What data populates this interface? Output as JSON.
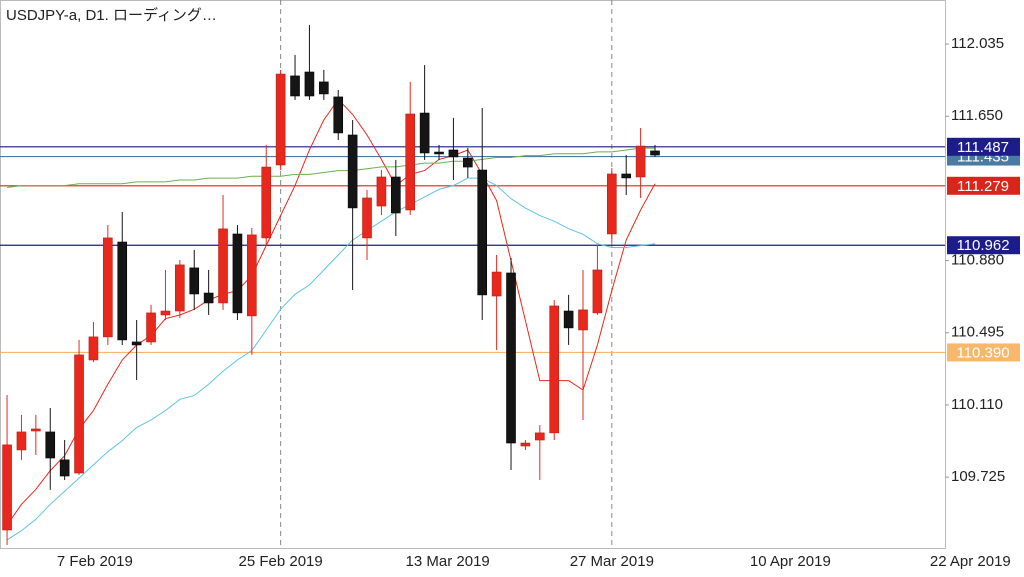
{
  "chart_data": {
    "type": "candlestick",
    "title": "USDJPY-a, D1. ローディング…",
    "categories": [
      null,
      null,
      null,
      null,
      null,
      null,
      null,
      null,
      null,
      null,
      null,
      null,
      null,
      null,
      null,
      null,
      null,
      null,
      null,
      null,
      null,
      null,
      null,
      null,
      null,
      null,
      null,
      null,
      null,
      null,
      null,
      null,
      null,
      null,
      null,
      null,
      null,
      null,
      null,
      null,
      null,
      null,
      null,
      null,
      null,
      null
    ],
    "open": [
      109.443,
      109.87,
      109.971,
      109.966,
      109.817,
      109.747,
      110.35,
      110.473,
      110.979,
      110.446,
      110.446,
      110.59,
      110.611,
      110.841,
      110.707,
      110.654,
      111.022,
      110.585,
      111.001,
      111.39,
      111.865,
      111.886,
      111.833,
      111.753,
      111.55,
      111.001,
      111.171,
      111.326,
      111.15,
      111.667,
      111.459,
      111.47,
      111.427,
      111.363,
      110.691,
      110.814,
      109.891,
      109.923,
      109.961,
      110.611,
      110.51,
      110.601,
      111.022,
      111.342,
      111.326,
      111.465
    ],
    "high": [
      110.163,
      110.057,
      110.057,
      110.094,
      109.923,
      110.457,
      110.553,
      111.07,
      111.139,
      110.563,
      110.643,
      110.83,
      110.883,
      110.937,
      110.83,
      111.23,
      111.07,
      111.054,
      111.497,
      111.897,
      111.977,
      112.137,
      111.897,
      111.79,
      111.63,
      111.257,
      111.363,
      111.417,
      111.833,
      111.923,
      111.497,
      111.641,
      111.481,
      111.694,
      110.91,
      110.894,
      109.923,
      110.003,
      110.67,
      110.697,
      110.83,
      110.963,
      111.374,
      111.443,
      111.587,
      111.497
    ],
    "low": [
      109.363,
      109.817,
      109.843,
      109.657,
      109.71,
      109.737,
      110.339,
      110.43,
      110.43,
      110.243,
      110.43,
      110.563,
      110.574,
      110.617,
      110.59,
      110.617,
      110.563,
      110.377,
      110.963,
      111.363,
      111.737,
      111.737,
      111.737,
      111.523,
      110.723,
      110.883,
      111.123,
      111.011,
      111.123,
      111.417,
      111.417,
      111.31,
      111.321,
      110.563,
      110.403,
      109.763,
      109.87,
      109.71,
      109.923,
      110.43,
      110.03,
      110.59,
      110.974,
      111.23,
      111.214,
      111.433
    ],
    "close": [
      109.897,
      109.966,
      109.982,
      109.827,
      109.731,
      110.377,
      110.473,
      111.001,
      110.457,
      110.43,
      110.601,
      110.611,
      110.857,
      110.702,
      110.654,
      111.049,
      110.601,
      111.017,
      111.379,
      111.875,
      111.758,
      111.758,
      111.769,
      111.561,
      111.161,
      111.214,
      111.326,
      111.134,
      111.662,
      111.454,
      111.449,
      111.433,
      111.379,
      110.697,
      110.819,
      109.907,
      109.907,
      109.961,
      110.638,
      110.521,
      110.617,
      110.83,
      111.342,
      111.321,
      111.491,
      111.443
    ],
    "up_color": "#e8281d",
    "down_color": "#151515",
    "series": [
      {
        "color": "#e8281d",
        "values": [
          109.47,
          109.58,
          109.66,
          109.76,
          109.84,
          109.98,
          110.08,
          110.22,
          110.35,
          110.43,
          110.48,
          110.57,
          110.59,
          110.62,
          110.67,
          110.7,
          110.72,
          110.8,
          110.96,
          111.12,
          111.28,
          111.47,
          111.63,
          111.74,
          111.66,
          111.55,
          111.42,
          111.28,
          111.34,
          111.36,
          111.42,
          111.44,
          111.47,
          111.34,
          111.2,
          110.88,
          110.56,
          110.24,
          110.24,
          110.24,
          110.19,
          110.43,
          110.72,
          110.99,
          111.15,
          111.29
        ]
      },
      {
        "color": "#5ec3e6",
        "values": [
          109.39,
          109.44,
          109.5,
          109.58,
          109.65,
          109.72,
          109.79,
          109.86,
          109.92,
          109.99,
          110.03,
          110.08,
          110.14,
          110.16,
          110.22,
          110.29,
          110.35,
          110.4,
          110.51,
          110.62,
          110.7,
          110.75,
          110.83,
          110.91,
          110.99,
          111.04,
          111.09,
          111.14,
          111.18,
          111.22,
          111.26,
          111.28,
          111.32,
          111.32,
          111.28,
          111.21,
          111.16,
          111.12,
          111.09,
          111.05,
          111.02,
          110.97,
          110.95,
          110.95,
          110.96,
          110.97
        ]
      },
      {
        "color": "#6ab04c",
        "values": [
          111.27,
          111.28,
          111.28,
          111.28,
          111.28,
          111.29,
          111.29,
          111.29,
          111.29,
          111.3,
          111.3,
          111.3,
          111.31,
          111.31,
          111.32,
          111.32,
          111.32,
          111.33,
          111.33,
          111.33,
          111.34,
          111.34,
          111.35,
          111.36,
          111.36,
          111.37,
          111.38,
          111.38,
          111.39,
          111.4,
          111.4,
          111.41,
          111.41,
          111.42,
          111.43,
          111.43,
          111.44,
          111.44,
          111.45,
          111.45,
          111.45,
          111.46,
          111.46,
          111.47,
          111.48,
          111.48
        ]
      }
    ],
    "price_lines": [
      {
        "value": 111.435,
        "color": "#4a7ca3"
      },
      {
        "value": 111.487,
        "color": "#1c1c8a"
      },
      {
        "value": 111.279,
        "color": "#d9261c"
      },
      {
        "value": 110.962,
        "color": "#1c1c8a"
      },
      {
        "value": {
          "value": 110.39,
          "label": "110.390"
        },
        "color": "#f7b86b"
      }
    ],
    "xlim": [
      -0.49,
      65.14
    ],
    "ylim": [
      109.347,
      112.27
    ],
    "xticks": [
      {
        "value": 6.1,
        "label": "7 Feb 2019"
      },
      {
        "value": 19,
        "label": "25 Feb 2019",
        "separator": true
      },
      {
        "value": 30.6,
        "label": "13 Mar 2019"
      },
      {
        "value": 42,
        "label": "27 Mar 2019",
        "separator": true
      },
      {
        "value": 54.4,
        "label": "10 Apr 2019"
      },
      {
        "value": 66.9,
        "label": "22 Apr 2019"
      }
    ],
    "yticks": [
      112.035,
      {
        "value": 111.65,
        "label": "111.650"
      },
      {
        "value": 110.88,
        "label": "110.880"
      },
      110.495,
      {
        "value": 110.11,
        "label": "110.110"
      },
      109.725
    ]
  }
}
